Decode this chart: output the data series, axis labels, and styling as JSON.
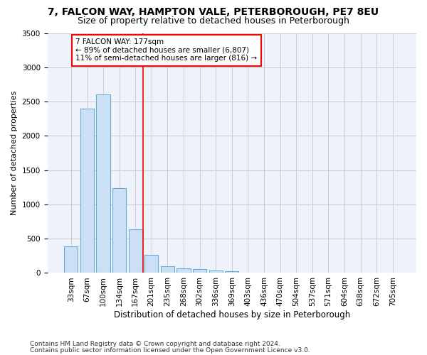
{
  "title_line1": "7, FALCON WAY, HAMPTON VALE, PETERBOROUGH, PE7 8EU",
  "title_line2": "Size of property relative to detached houses in Peterborough",
  "xlabel": "Distribution of detached houses by size in Peterborough",
  "ylabel": "Number of detached properties",
  "categories": [
    "33sqm",
    "67sqm",
    "100sqm",
    "134sqm",
    "167sqm",
    "201sqm",
    "235sqm",
    "268sqm",
    "302sqm",
    "336sqm",
    "369sqm",
    "403sqm",
    "436sqm",
    "470sqm",
    "504sqm",
    "537sqm",
    "571sqm",
    "604sqm",
    "638sqm",
    "672sqm",
    "705sqm"
  ],
  "values": [
    390,
    2400,
    2600,
    1240,
    640,
    260,
    100,
    65,
    55,
    40,
    30,
    0,
    0,
    0,
    0,
    0,
    0,
    0,
    0,
    0,
    0
  ],
  "bar_color": "#cce0f5",
  "bar_edge_color": "#6aaad4",
  "grid_color": "#cccccc",
  "background_color": "#eef2fb",
  "annotation_box_text1": "7 FALCON WAY: 177sqm",
  "annotation_box_text2": "← 89% of detached houses are smaller (6,807)",
  "annotation_box_text3": "11% of semi-detached houses are larger (816) →",
  "vline_x_index": 4.5,
  "ylim": [
    0,
    3500
  ],
  "yticks": [
    0,
    500,
    1000,
    1500,
    2000,
    2500,
    3000,
    3500
  ],
  "footnote1": "Contains HM Land Registry data © Crown copyright and database right 2024.",
  "footnote2": "Contains public sector information licensed under the Open Government Licence v3.0.",
  "title_fontsize": 10,
  "subtitle_fontsize": 9,
  "ylabel_fontsize": 8,
  "xlabel_fontsize": 8.5,
  "tick_fontsize": 7.5,
  "annot_fontsize": 7.5
}
